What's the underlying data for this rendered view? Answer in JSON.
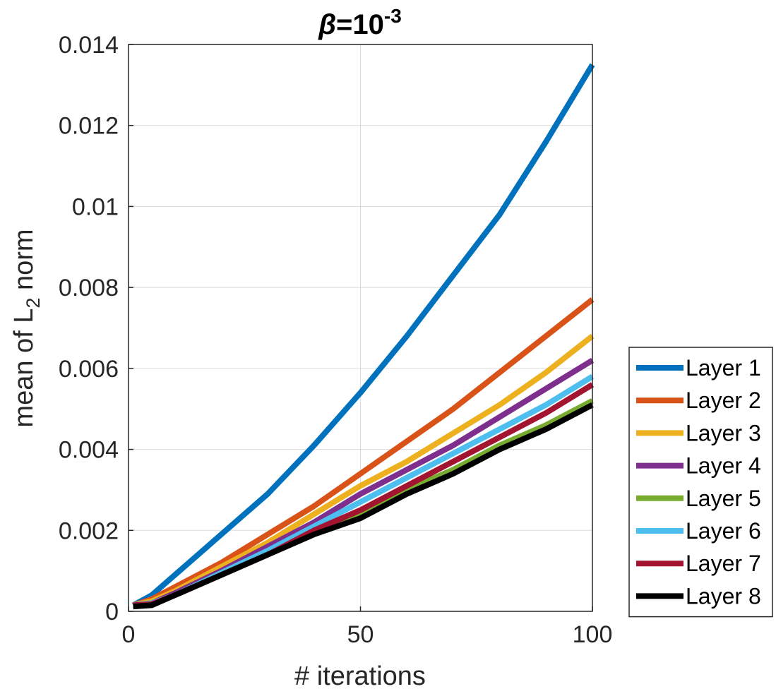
{
  "chart_data": {
    "type": "line",
    "title": {
      "symbol": "β",
      "base": "=10",
      "exponent": "-3"
    },
    "xlabel": "# iterations",
    "ylabel": {
      "main": "mean of L",
      "sub": "2",
      "tail": " norm"
    },
    "xlim": [
      0,
      100
    ],
    "ylim": [
      0,
      0.014
    ],
    "xticks": [
      0,
      50,
      100
    ],
    "xtick_labels": [
      "0",
      "50",
      "100"
    ],
    "yticks": [
      0,
      0.002,
      0.004,
      0.006,
      0.008,
      0.01,
      0.012,
      0.014
    ],
    "ytick_labels": [
      "0",
      "0.002",
      "0.004",
      "0.006",
      "0.008",
      "0.01",
      "0.012",
      "0.014"
    ],
    "grid": true,
    "legend_position": "outside-right-bottom",
    "x": [
      1,
      5,
      10,
      20,
      30,
      40,
      50,
      60,
      70,
      80,
      90,
      100
    ],
    "series": [
      {
        "name": "Layer 1",
        "color": "#0072BD",
        "values": [
          0.00015,
          0.0004,
          0.0009,
          0.0019,
          0.0029,
          0.0041,
          0.0054,
          0.0068,
          0.0083,
          0.0098,
          0.0116,
          0.0135
        ]
      },
      {
        "name": "Layer 2",
        "color": "#D95319",
        "values": [
          0.00015,
          0.0003,
          0.0006,
          0.0012,
          0.0019,
          0.0026,
          0.0034,
          0.0042,
          0.005,
          0.0059,
          0.0068,
          0.0077
        ]
      },
      {
        "name": "Layer 3",
        "color": "#EDB120",
        "values": [
          0.00015,
          0.00025,
          0.0005,
          0.0011,
          0.0017,
          0.0024,
          0.0031,
          0.0037,
          0.0044,
          0.0051,
          0.0059,
          0.0068
        ]
      },
      {
        "name": "Layer 4",
        "color": "#7E2F8E",
        "values": [
          0.00015,
          0.0002,
          0.00045,
          0.001,
          0.0016,
          0.0022,
          0.0029,
          0.0035,
          0.0041,
          0.0048,
          0.0055,
          0.0062
        ]
      },
      {
        "name": "Layer 5",
        "color": "#77AC30",
        "values": [
          0.00015,
          0.00018,
          0.0004,
          0.0009,
          0.0014,
          0.0019,
          0.0024,
          0.003,
          0.0035,
          0.0041,
          0.0046,
          0.0052
        ]
      },
      {
        "name": "Layer 6",
        "color": "#4DBEEE",
        "values": [
          0.00015,
          0.0002,
          0.0004,
          0.00095,
          0.0015,
          0.0021,
          0.0027,
          0.0033,
          0.0039,
          0.0045,
          0.0051,
          0.0058
        ]
      },
      {
        "name": "Layer 7",
        "color": "#A2142F",
        "values": [
          0.00015,
          0.00018,
          0.0004,
          0.0009,
          0.0014,
          0.002,
          0.0025,
          0.0031,
          0.0037,
          0.0043,
          0.0049,
          0.0056
        ]
      },
      {
        "name": "Layer 8",
        "color": "#000000",
        "values": [
          0.00012,
          0.00015,
          0.0004,
          0.0009,
          0.0014,
          0.0019,
          0.0023,
          0.0029,
          0.0034,
          0.004,
          0.0045,
          0.0051
        ]
      }
    ]
  }
}
